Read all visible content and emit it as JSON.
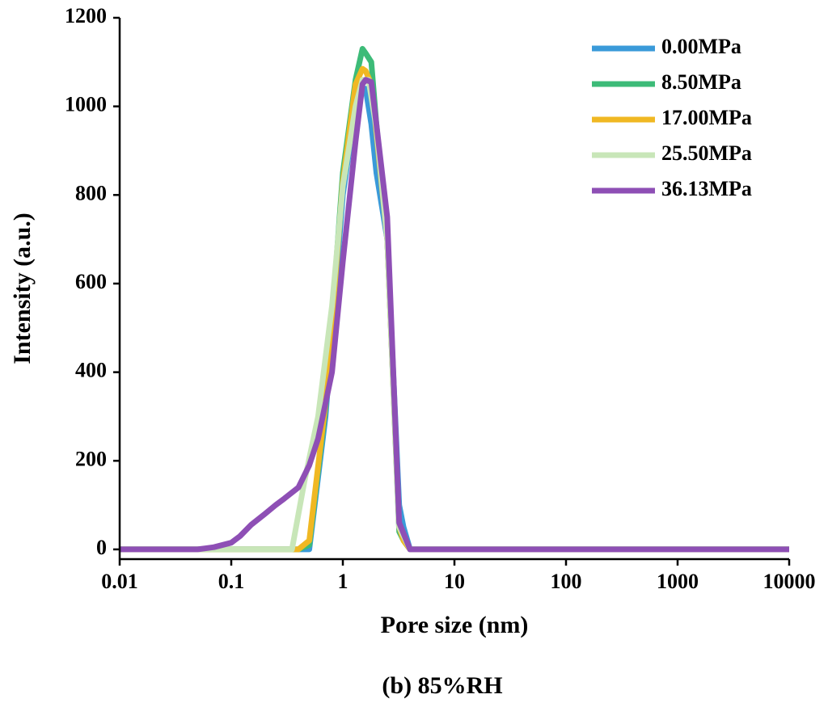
{
  "chart_data": {
    "type": "line",
    "caption": "(b) 85%RH",
    "x_label": "Pore size (nm)",
    "y_label": "Intensity (a.u.)",
    "log_x": true,
    "xlim": [
      0.01,
      10000
    ],
    "xticks": [
      0.01,
      0.1,
      1,
      10,
      100,
      1000,
      10000
    ],
    "ylim": [
      -22,
      1200
    ],
    "yticks": [
      0,
      200,
      400,
      600,
      800,
      1000,
      1200
    ],
    "legend": "top-right",
    "series": [
      {
        "name": "0.00MPa",
        "color": "#3a9ad9",
        "x": [
          0.01,
          0.4,
          0.5,
          0.7,
          1.0,
          1.3,
          1.5,
          1.6,
          1.8,
          2.0,
          2.5,
          3.2,
          3.5,
          4.0,
          10000
        ],
        "values": [
          0,
          0,
          0,
          300,
          800,
          1000,
          1040,
          1040,
          960,
          850,
          700,
          100,
          50,
          0,
          0
        ]
      },
      {
        "name": "8.50MPa",
        "color": "#3dbb78",
        "x": [
          0.01,
          0.4,
          0.5,
          0.7,
          1.0,
          1.3,
          1.5,
          1.6,
          1.8,
          2.0,
          2.5,
          3.2,
          3.5,
          4.0,
          10000
        ],
        "values": [
          0,
          0,
          10,
          320,
          850,
          1060,
          1130,
          1120,
          1100,
          960,
          700,
          40,
          20,
          0,
          0
        ]
      },
      {
        "name": "17.00MPa",
        "color": "#f0b823",
        "x": [
          0.01,
          0.4,
          0.5,
          0.7,
          1.0,
          1.3,
          1.5,
          1.6,
          1.8,
          2.0,
          2.5,
          3.2,
          3.5,
          4.0,
          10000
        ],
        "values": [
          0,
          0,
          20,
          330,
          830,
          1050,
          1085,
          1080,
          1050,
          940,
          700,
          50,
          20,
          0,
          0
        ]
      },
      {
        "name": "25.50MPa",
        "color": "#c8e6b8",
        "x": [
          0.01,
          0.35,
          0.45,
          0.6,
          0.8,
          1.0,
          1.3,
          1.5,
          1.7,
          2.0,
          2.5,
          3.2,
          4.0,
          10000
        ],
        "values": [
          0,
          0,
          150,
          300,
          550,
          820,
          1000,
          1060,
          1060,
          950,
          700,
          50,
          0,
          0
        ]
      },
      {
        "name": "36.13MPa",
        "color": "#8e4fb5",
        "x": [
          0.01,
          0.05,
          0.07,
          0.1,
          0.12,
          0.15,
          0.2,
          0.25,
          0.3,
          0.4,
          0.5,
          0.6,
          0.8,
          1.0,
          1.3,
          1.5,
          1.6,
          1.8,
          2.0,
          2.5,
          3.2,
          4.0,
          10000
        ],
        "values": [
          0,
          0,
          5,
          15,
          30,
          55,
          80,
          100,
          115,
          140,
          190,
          250,
          400,
          650,
          920,
          1050,
          1060,
          1055,
          960,
          750,
          60,
          0,
          0
        ]
      }
    ]
  }
}
